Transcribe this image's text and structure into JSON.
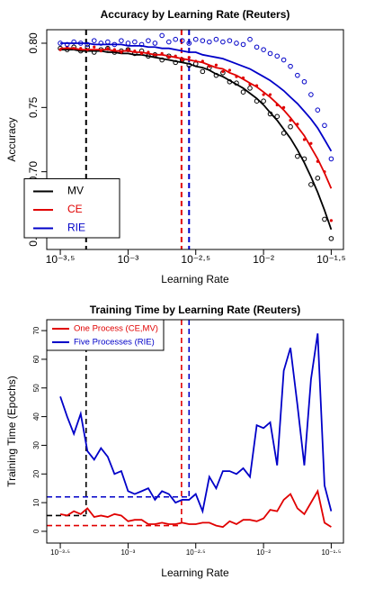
{
  "chart_data": [
    {
      "type": "scatter",
      "title": "Accuracy by Learning Rate (Reuters)",
      "xlabel": "Learning Rate",
      "ylabel": "Accuracy",
      "xlog": true,
      "xlim": [
        0.000251,
        0.0389
      ],
      "ylim": [
        0.6395,
        0.8105
      ],
      "xticks": [
        {
          "value": 0.000316,
          "label": "10⁻³·⁵"
        },
        {
          "value": 0.001,
          "label": "10⁻³"
        },
        {
          "value": 0.00316,
          "label": "10⁻²·⁵"
        },
        {
          "value": 0.01,
          "label": "10⁻²"
        },
        {
          "value": 0.0316,
          "label": "10⁻¹·⁵"
        }
      ],
      "yticks": [
        0.65,
        {
          "value": 0.7,
          "label": "0.70"
        },
        0.75,
        {
          "value": 0.8,
          "label": "0.80"
        }
      ],
      "legend": "bottomleft",
      "x": [
        0.000316,
        0.000355,
        0.000398,
        0.000447,
        0.000501,
        0.000562,
        0.000631,
        0.000708,
        0.000794,
        0.000891,
        0.001,
        0.00112,
        0.00126,
        0.00141,
        0.00158,
        0.00178,
        0.002,
        0.00224,
        0.00251,
        0.00282,
        0.00316,
        0.00355,
        0.00398,
        0.00447,
        0.00501,
        0.00562,
        0.00631,
        0.00708,
        0.00794,
        0.00891,
        0.01,
        0.0112,
        0.0126,
        0.0141,
        0.0158,
        0.0178,
        0.02,
        0.0224,
        0.0251,
        0.0282,
        0.0316
      ],
      "series": [
        {
          "name": "MV",
          "color": "#000000",
          "marker": "circle",
          "values": [
            0.796,
            0.795,
            0.797,
            0.794,
            0.797,
            0.793,
            0.795,
            0.796,
            0.793,
            0.794,
            0.795,
            0.792,
            0.794,
            0.79,
            0.791,
            0.787,
            0.79,
            0.785,
            0.787,
            0.783,
            0.784,
            0.778,
            0.781,
            0.775,
            0.777,
            0.77,
            0.769,
            0.762,
            0.765,
            0.755,
            0.755,
            0.745,
            0.743,
            0.73,
            0.735,
            0.712,
            0.71,
            0.69,
            0.695,
            0.663,
            0.648
          ],
          "fit": [
            0.795,
            0.795,
            0.795,
            0.794,
            0.794,
            0.794,
            0.794,
            0.793,
            0.793,
            0.792,
            0.792,
            0.791,
            0.791,
            0.79,
            0.789,
            0.788,
            0.787,
            0.786,
            0.785,
            0.784,
            0.782,
            0.781,
            0.779,
            0.776,
            0.774,
            0.771,
            0.768,
            0.765,
            0.761,
            0.757,
            0.752,
            0.746,
            0.74,
            0.733,
            0.726,
            0.717,
            0.707,
            0.696,
            0.684,
            0.67,
            0.655
          ]
        },
        {
          "name": "CE",
          "color": "#e00000",
          "marker": "dot",
          "values": [
            0.795,
            0.797,
            0.796,
            0.796,
            0.795,
            0.797,
            0.794,
            0.796,
            0.795,
            0.793,
            0.795,
            0.794,
            0.792,
            0.793,
            0.791,
            0.792,
            0.789,
            0.79,
            0.787,
            0.789,
            0.786,
            0.786,
            0.782,
            0.783,
            0.778,
            0.779,
            0.774,
            0.773,
            0.768,
            0.767,
            0.76,
            0.76,
            0.752,
            0.75,
            0.74,
            0.737,
            0.725,
            0.722,
            0.708,
            0.7,
            0.662
          ],
          "fit": [
            0.796,
            0.796,
            0.796,
            0.795,
            0.795,
            0.795,
            0.795,
            0.795,
            0.794,
            0.794,
            0.794,
            0.793,
            0.793,
            0.792,
            0.791,
            0.791,
            0.79,
            0.789,
            0.788,
            0.787,
            0.786,
            0.785,
            0.783,
            0.781,
            0.78,
            0.777,
            0.775,
            0.772,
            0.769,
            0.766,
            0.762,
            0.758,
            0.753,
            0.748,
            0.742,
            0.735,
            0.728,
            0.719,
            0.71,
            0.699,
            0.687
          ]
        },
        {
          "name": "RIE",
          "color": "#0000c8",
          "marker": "circle",
          "values": [
            0.8,
            0.799,
            0.801,
            0.8,
            0.799,
            0.802,
            0.8,
            0.801,
            0.799,
            0.802,
            0.8,
            0.801,
            0.799,
            0.802,
            0.8,
            0.806,
            0.801,
            0.803,
            0.802,
            0.8,
            0.803,
            0.802,
            0.801,
            0.803,
            0.801,
            0.802,
            0.8,
            0.799,
            0.803,
            0.797,
            0.795,
            0.792,
            0.79,
            0.787,
            0.782,
            0.775,
            0.77,
            0.76,
            0.748,
            0.736,
            0.71
          ],
          "fit": [
            0.8,
            0.8,
            0.8,
            0.8,
            0.8,
            0.799,
            0.799,
            0.799,
            0.799,
            0.799,
            0.798,
            0.798,
            0.798,
            0.797,
            0.797,
            0.796,
            0.796,
            0.795,
            0.794,
            0.793,
            0.793,
            0.791,
            0.79,
            0.789,
            0.788,
            0.786,
            0.784,
            0.782,
            0.78,
            0.777,
            0.774,
            0.771,
            0.767,
            0.763,
            0.758,
            0.753,
            0.747,
            0.741,
            0.734,
            0.725,
            0.716
          ]
        }
      ],
      "vlines": [
        {
          "x": 0.00049,
          "color": "#000000"
        },
        {
          "x": 0.00248,
          "color": "#e00000"
        },
        {
          "x": 0.00282,
          "color": "#0000c8"
        }
      ]
    },
    {
      "type": "line",
      "title": "Training Time by Learning Rate (Reuters)",
      "xlabel": "Learning Rate",
      "ylabel": "Training Time (Epochs)",
      "xlog": true,
      "xlim": [
        0.000251,
        0.0389
      ],
      "ylim": [
        -4.1,
        73.8
      ],
      "xticks": [
        {
          "value": 0.000316,
          "label": "10⁻³·⁵"
        },
        {
          "value": 0.001,
          "label": "10⁻³"
        },
        {
          "value": 0.00316,
          "label": "10⁻²·⁵"
        },
        {
          "value": 0.01,
          "label": "10⁻²"
        },
        {
          "value": 0.0316,
          "label": "10⁻¹·⁵"
        }
      ],
      "yticks": [
        0,
        10,
        20,
        30,
        40,
        50,
        60,
        70
      ],
      "legend": "topleft",
      "x": [
        0.000316,
        0.000355,
        0.000398,
        0.000447,
        0.000501,
        0.000562,
        0.000631,
        0.000708,
        0.000794,
        0.000891,
        0.001,
        0.00112,
        0.00126,
        0.00141,
        0.00158,
        0.00178,
        0.002,
        0.00224,
        0.00251,
        0.00282,
        0.00316,
        0.00355,
        0.00398,
        0.00447,
        0.00501,
        0.00562,
        0.00631,
        0.00708,
        0.00794,
        0.00891,
        0.01,
        0.0112,
        0.0126,
        0.0141,
        0.0158,
        0.0178,
        0.02,
        0.0224,
        0.0251,
        0.0282,
        0.0316
      ],
      "series": [
        {
          "name": "One Process (CE,MV)",
          "color": "#e00000",
          "values": [
            6,
            5.5,
            7,
            6,
            8,
            5,
            5.5,
            5,
            6,
            5.5,
            3.5,
            4,
            4,
            2.5,
            2.5,
            3,
            2.5,
            2.5,
            3,
            2.5,
            2.5,
            3,
            3,
            2,
            1.5,
            3.5,
            2.5,
            4,
            4,
            3.5,
            4.5,
            7.5,
            7,
            11,
            13,
            8,
            6,
            10,
            14,
            3,
            1.5
          ]
        },
        {
          "name": "Five Processes (RIE)",
          "color": "#0000c8",
          "values": [
            47,
            40,
            34,
            41,
            28,
            25,
            29,
            26,
            20,
            21,
            14,
            13,
            14,
            15,
            11,
            14,
            13,
            10,
            11,
            11,
            13,
            7,
            19,
            15,
            21,
            21,
            20,
            22,
            19,
            37,
            36,
            38,
            23,
            56,
            64,
            44,
            23,
            53,
            69,
            16,
            7
          ]
        }
      ],
      "refs": [
        {
          "x": 0.00049,
          "y": 5.5,
          "color": "#000000"
        },
        {
          "x": 0.00248,
          "y": 2,
          "color": "#e00000"
        },
        {
          "x": 0.00282,
          "y": 12,
          "color": "#0000c8"
        }
      ]
    }
  ]
}
